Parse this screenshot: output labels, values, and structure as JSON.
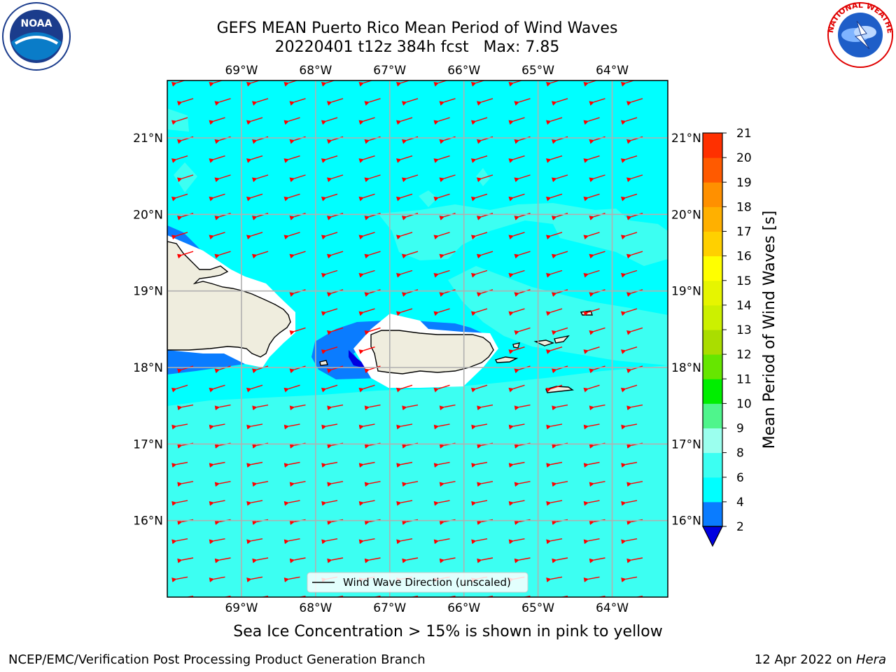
{
  "title": {
    "line1": "GEFS MEAN Puerto Rico Mean Period of Wind Waves",
    "line2": "20220401 t12z 384h fcst   Max: 7.85"
  },
  "logos": {
    "left": "noaa-logo",
    "left_text": "NOAA",
    "right": "nws-logo",
    "right_text": "NATIONAL WEATHER SERVICE"
  },
  "map": {
    "lon_ticks": [
      "69°W",
      "68°W",
      "67°W",
      "66°W",
      "65°W",
      "64°W"
    ],
    "lon_values": [
      -69,
      -68,
      -67,
      -66,
      -65,
      -64
    ],
    "lat_ticks": [
      "21°N",
      "20°N",
      "19°N",
      "18°N",
      "17°N",
      "16°N"
    ],
    "lat_values": [
      21,
      20,
      19,
      18,
      17,
      16
    ],
    "lon_range": [
      -70.0,
      -63.25
    ],
    "lat_range": [
      15.0,
      21.75
    ],
    "ocean_color": "#00ffff",
    "light_band_color": "#3cfff2",
    "low_period_color": "#0a7cff",
    "lowest_period_color": "#0000e0",
    "land_color": "#efedde",
    "arrow_color": "#ff0000",
    "arrow_direction": "toward west-southwest",
    "legend_label": "Wind Wave Direction (unscaled)"
  },
  "colorbar": {
    "label": "Mean Period of Wind Waves [s]",
    "ticks": [
      "2",
      "4",
      "6",
      "8",
      "9",
      "10",
      "11",
      "12",
      "13",
      "14",
      "15",
      "16",
      "17",
      "18",
      "19",
      "20",
      "21"
    ],
    "colors": [
      "#0a7cff",
      "#00ffff",
      "#3cfff2",
      "#9bffee",
      "#4ff58c",
      "#00ee00",
      "#66e600",
      "#aadd00",
      "#ccf000",
      "#e6f500",
      "#ffff00",
      "#ffd000",
      "#ffb000",
      "#ff9000",
      "#ff5a00",
      "#ff3000"
    ],
    "under_color": "#0000e0"
  },
  "subtitle": "Sea Ice Concentration > 15% is shown in pink to yellow",
  "footer": {
    "left": "NCEP/EMC/Verification Post Processing Product Generation Branch",
    "right_date": "12 Apr 2022 on ",
    "right_host": "Hera"
  }
}
